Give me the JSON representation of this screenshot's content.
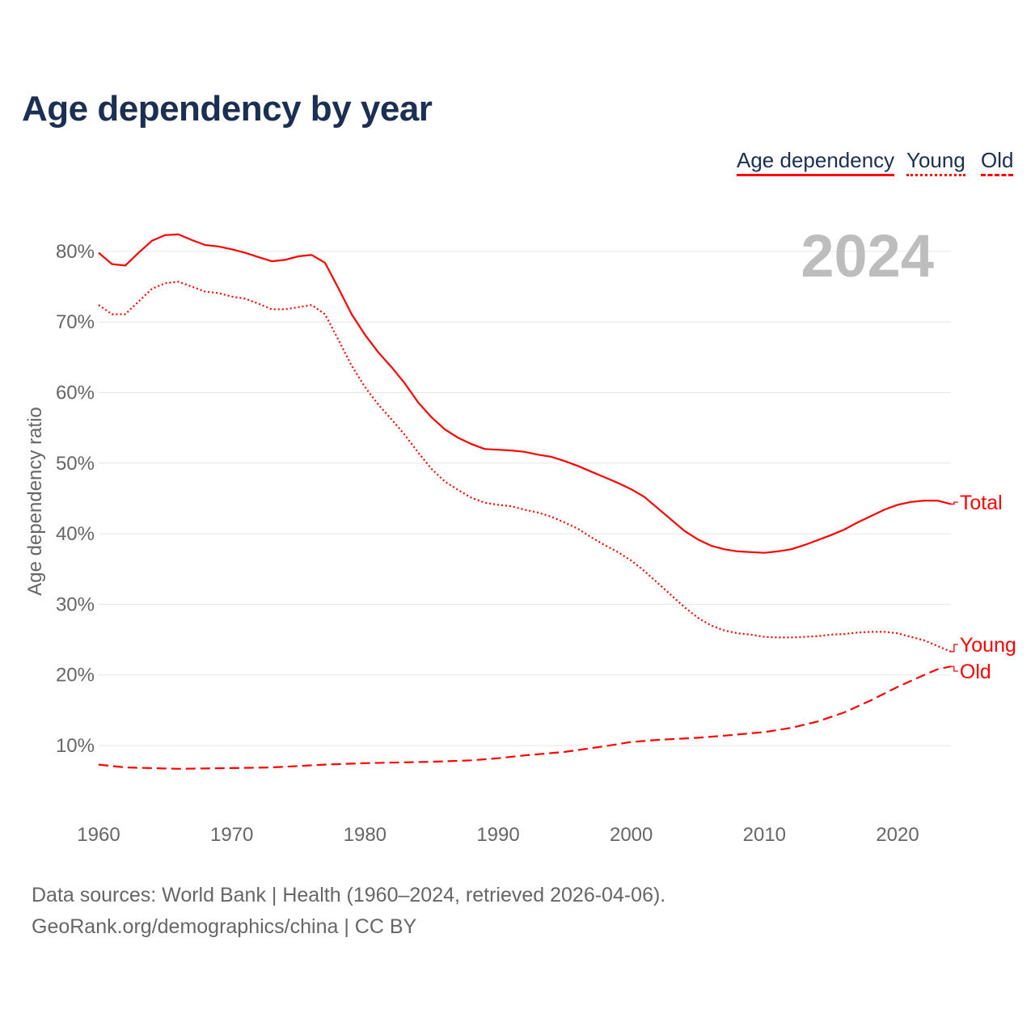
{
  "chart_data": {
    "type": "line",
    "title": "Age dependency by year",
    "ylabel": "Age dependency ratio",
    "xlabel": "",
    "year_label": "2024",
    "xlim": [
      1960,
      2024
    ],
    "ylim": [
      0,
      90
    ],
    "x_ticks": [
      "1960",
      "1970",
      "1980",
      "1990",
      "2000",
      "2010",
      "2020"
    ],
    "y_ticks": [
      "10%",
      "20%",
      "30%",
      "40%",
      "50%",
      "60%",
      "70%",
      "80%"
    ],
    "grid": true,
    "legend": {
      "position": "top-right",
      "items": [
        "Age dependency",
        "Young",
        "Old"
      ]
    },
    "color": "#ff0000",
    "series": [
      {
        "name": "Total",
        "style": "solid",
        "x": [
          1960,
          1961,
          1962,
          1963,
          1964,
          1965,
          1966,
          1967,
          1968,
          1969,
          1970,
          1971,
          1972,
          1973,
          1974,
          1975,
          1976,
          1977,
          1978,
          1979,
          1980,
          1981,
          1982,
          1983,
          1984,
          1985,
          1986,
          1987,
          1988,
          1989,
          1990,
          1991,
          1992,
          1993,
          1994,
          1995,
          1996,
          1997,
          1998,
          1999,
          2000,
          2001,
          2002,
          2003,
          2004,
          2005,
          2006,
          2007,
          2008,
          2009,
          2010,
          2011,
          2012,
          2013,
          2014,
          2015,
          2016,
          2017,
          2018,
          2019,
          2020,
          2021,
          2022,
          2023,
          2024
        ],
        "values": [
          79.8,
          78.2,
          78.0,
          79.8,
          81.5,
          82.3,
          82.4,
          81.6,
          80.9,
          80.7,
          80.3,
          79.8,
          79.2,
          78.6,
          78.8,
          79.3,
          79.5,
          78.4,
          74.8,
          71.1,
          68.2,
          65.7,
          63.6,
          61.3,
          58.6,
          56.5,
          54.8,
          53.6,
          52.7,
          52.0,
          51.9,
          51.8,
          51.6,
          51.2,
          50.9,
          50.3,
          49.6,
          48.8,
          48.0,
          47.2,
          46.3,
          45.2,
          43.6,
          42.0,
          40.4,
          39.2,
          38.3,
          37.8,
          37.5,
          37.4,
          37.3,
          37.5,
          37.8,
          38.4,
          39.1,
          39.8,
          40.6,
          41.6,
          42.5,
          43.4,
          44.1,
          44.5,
          44.7,
          44.7,
          44.2
        ]
      },
      {
        "name": "Young",
        "style": "dotted",
        "x": [
          1960,
          1961,
          1962,
          1963,
          1964,
          1965,
          1966,
          1967,
          1968,
          1969,
          1970,
          1971,
          1972,
          1973,
          1974,
          1975,
          1976,
          1977,
          1978,
          1979,
          1980,
          1981,
          1982,
          1983,
          1984,
          1985,
          1986,
          1987,
          1988,
          1989,
          1990,
          1991,
          1992,
          1993,
          1994,
          1995,
          1996,
          1997,
          1998,
          1999,
          2000,
          2001,
          2002,
          2003,
          2004,
          2005,
          2006,
          2007,
          2008,
          2009,
          2010,
          2011,
          2012,
          2013,
          2014,
          2015,
          2016,
          2017,
          2018,
          2019,
          2020,
          2021,
          2022,
          2023,
          2024
        ],
        "values": [
          72.4,
          71.1,
          71.1,
          72.9,
          74.7,
          75.5,
          75.7,
          75.0,
          74.3,
          74.1,
          73.6,
          73.3,
          72.6,
          71.8,
          71.8,
          72.1,
          72.4,
          71.1,
          67.5,
          63.8,
          60.8,
          58.3,
          56.2,
          54.0,
          51.5,
          49.2,
          47.4,
          46.2,
          45.1,
          44.4,
          44.1,
          43.9,
          43.4,
          43.0,
          42.4,
          41.6,
          40.7,
          39.5,
          38.4,
          37.4,
          36.2,
          34.7,
          33.0,
          31.3,
          29.6,
          28.1,
          27.0,
          26.3,
          25.9,
          25.7,
          25.4,
          25.3,
          25.3,
          25.4,
          25.5,
          25.7,
          25.8,
          26.0,
          26.1,
          26.1,
          25.9,
          25.4,
          24.9,
          24.1,
          23.3
        ]
      },
      {
        "name": "Old",
        "style": "dashed",
        "x": [
          1960,
          1962,
          1966,
          1970,
          1973,
          1977,
          1980,
          1985,
          1988,
          1990,
          1992,
          1995,
          1998,
          2000,
          2002,
          2005,
          2007,
          2010,
          2012,
          2014,
          2016,
          2018,
          2020,
          2022,
          2023,
          2024
        ],
        "values": [
          7.3,
          6.9,
          6.7,
          6.8,
          6.9,
          7.3,
          7.5,
          7.7,
          7.9,
          8.2,
          8.6,
          9.1,
          9.9,
          10.5,
          10.8,
          11.1,
          11.4,
          11.9,
          12.5,
          13.4,
          14.7,
          16.4,
          18.3,
          20.0,
          20.8,
          21.2
        ]
      }
    ]
  },
  "source_line1": "Data sources: World Bank | Health (1960–2024, retrieved 2026-04-06).",
  "source_line2": "GeoRank.org/demographics/china | CC BY"
}
